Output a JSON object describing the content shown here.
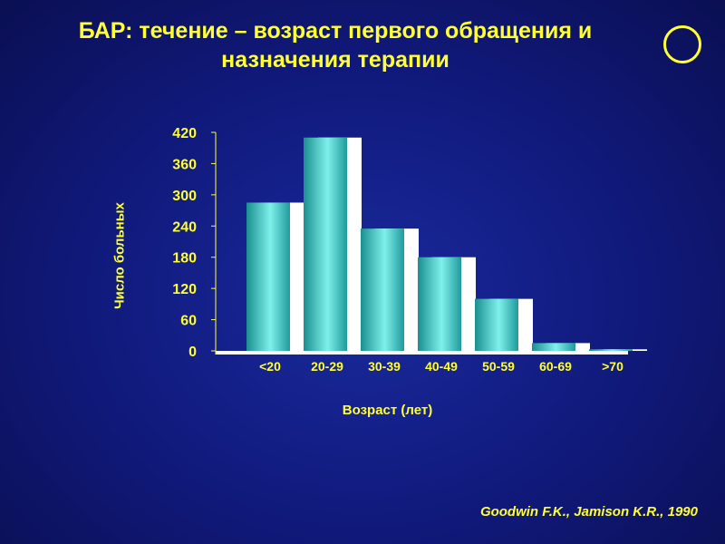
{
  "title_line1": "БАР: течение – возраст первого обращения и",
  "title_line2": "назначения терапии",
  "citation": "Goodwin F.K., Jamison K.R., 1990",
  "colors": {
    "background": "#10197a",
    "text": "#ffff33",
    "bar_face": "#40c0c0",
    "bar_back": "#ffffff",
    "axis": "#ffff33"
  },
  "chart_data": {
    "type": "bar",
    "categories": [
      "<20",
      "20-29",
      "30-39",
      "40-49",
      "50-59",
      "60-69",
      ">70"
    ],
    "values": [
      285,
      410,
      235,
      180,
      100,
      15,
      3
    ],
    "xlabel": "Возраст (лет)",
    "ylabel": "Число больных",
    "yticks": [
      0,
      60,
      120,
      180,
      240,
      300,
      360,
      420
    ],
    "ylim": [
      0,
      420
    ],
    "grid": false,
    "legend": "none"
  }
}
